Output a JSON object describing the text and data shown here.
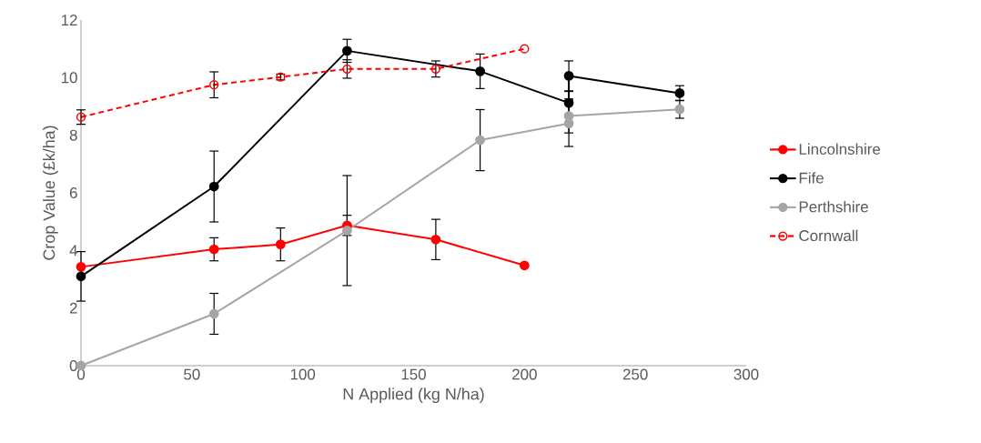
{
  "chart_data": {
    "type": "line",
    "xlabel": "N Applied (kg N/ha)",
    "ylabel": "Crop Value (£k/ha)",
    "xlim": [
      0,
      300
    ],
    "xticks": [
      0,
      50,
      100,
      150,
      200,
      250,
      300
    ],
    "ylim": [
      0,
      12
    ],
    "yticks": [
      0,
      2,
      4,
      6,
      8,
      10,
      12
    ],
    "grid": false,
    "legend": "right",
    "marker": "circle",
    "series": [
      {
        "name": "Lincolnshire",
        "color": "#ff0000",
        "line_style": "solid",
        "x": [
          0,
          60,
          90,
          120,
          160,
          200
        ],
        "values": [
          3.43,
          4.04,
          4.21,
          4.87,
          4.38,
          3.48
        ],
        "errors": [
          null,
          0.4,
          0.57,
          0.35,
          0.7,
          null
        ]
      },
      {
        "name": "Fife",
        "color": "#000000",
        "line_style": "solid",
        "x": [
          0,
          60,
          120,
          180,
          220,
          220,
          270
        ],
        "values": [
          3.1,
          6.22,
          10.93,
          10.22,
          9.12,
          10.06,
          9.46
        ],
        "errors": [
          0.86,
          1.23,
          0.4,
          0.6,
          0.4,
          0.52,
          0.26
        ]
      },
      {
        "name": "Perthshire",
        "color": "#a5a5a5",
        "line_style": "solid",
        "x": [
          0,
          60,
          120,
          180,
          220,
          220,
          270
        ],
        "values": [
          0,
          1.8,
          4.69,
          7.83,
          8.41,
          8.67,
          8.9
        ],
        "errors": [
          null,
          0.71,
          1.91,
          1.06,
          0.8,
          0.59,
          0.31
        ]
      },
      {
        "name": "Cornwall",
        "color": "#ff0000",
        "line_style": "dashed",
        "x": [
          0,
          60,
          90,
          120,
          160,
          200
        ],
        "values": [
          8.63,
          9.75,
          10.02,
          10.3,
          10.3,
          11.0
        ],
        "errors": [
          0.25,
          0.45,
          0.1,
          0.32,
          0.28,
          null
        ]
      }
    ]
  }
}
